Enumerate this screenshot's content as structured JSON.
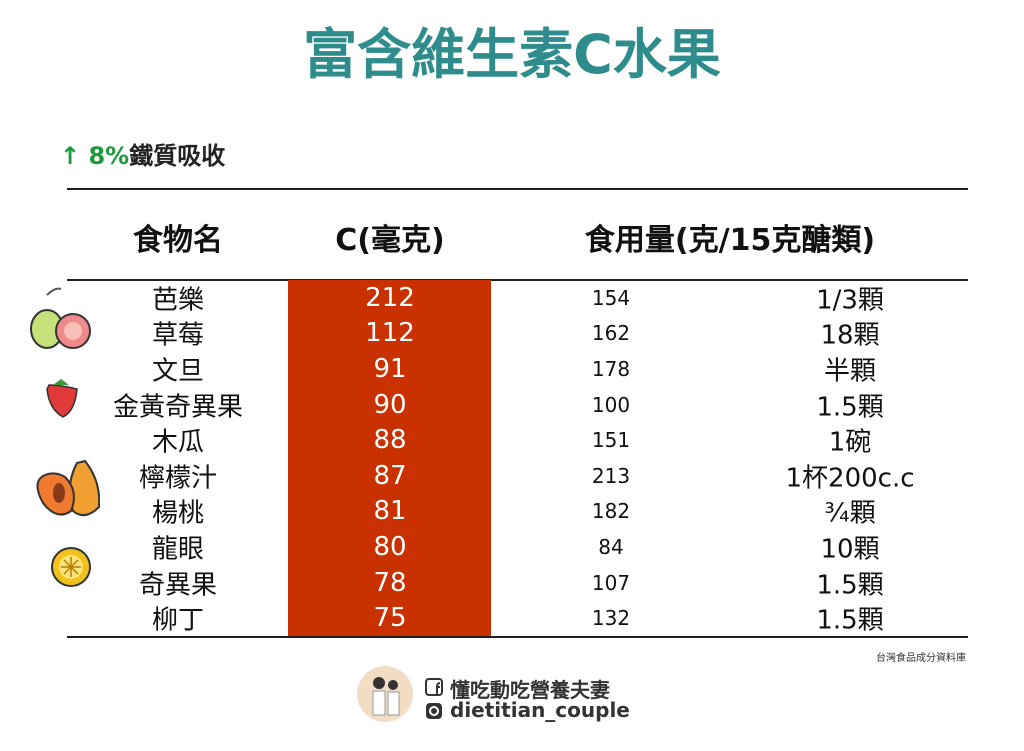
{
  "title": "富含維生素C水果",
  "note": {
    "arrow": "↑",
    "highlight": "8%",
    "text": "鐵質吸收"
  },
  "table": {
    "headers": [
      "食物名",
      "C(毫克)",
      "食用量(克/15克醣類)"
    ],
    "rows": [
      [
        "芭樂",
        "212",
        "154",
        "1/3顆"
      ],
      [
        "草莓",
        "112",
        "162",
        "18顆"
      ],
      [
        "文旦",
        "91",
        "178",
        "半顆"
      ],
      [
        "金黃奇異果",
        "90",
        "100",
        "1.5顆"
      ],
      [
        "木瓜",
        "88",
        "151",
        "1碗"
      ],
      [
        "檸檬汁",
        "87",
        "213",
        "1杯200c.c"
      ],
      [
        "楊桃",
        "81",
        "182",
        "¾顆"
      ],
      [
        "龍眼",
        "80",
        "84",
        "10顆"
      ],
      [
        "奇異果",
        "78",
        "107",
        "1.5顆"
      ],
      [
        "柳丁",
        "75",
        "132",
        "1.5顆"
      ]
    ]
  },
  "source": "台灣食品成分資料庫",
  "footer": {
    "brand": "懂吃動吃營養夫妻",
    "handle": "dietitian_couple"
  }
}
